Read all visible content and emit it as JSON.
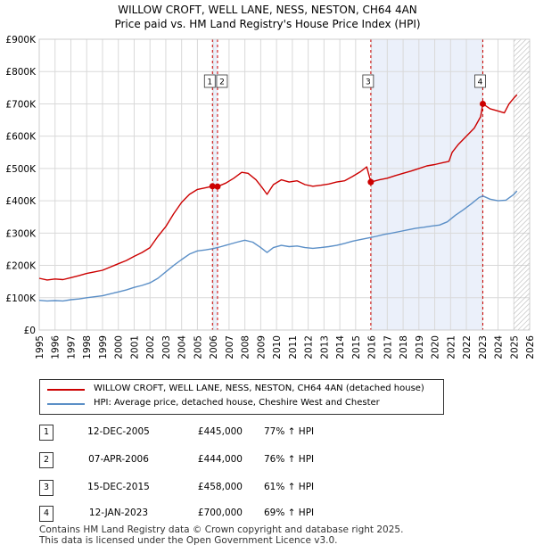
{
  "title_line1": "WILLOW CROFT, WELL LANE, NESS, NESTON, CH64 4AN",
  "title_line2": "Price paid vs. HM Land Registry's House Price Index (HPI)",
  "chart_data": {
    "type": "line",
    "title": "WILLOW CROFT, WELL LANE, NESS, NESTON, CH64 4AN — Price paid vs. HM Land Registry's House Price Index (HPI)",
    "xlabel": "",
    "ylabel": "",
    "xlim": [
      1995,
      2026
    ],
    "ylim": [
      0,
      900000
    ],
    "x_ticks": [
      "1995",
      "1996",
      "1997",
      "1998",
      "1999",
      "2000",
      "2001",
      "2002",
      "2003",
      "2004",
      "2005",
      "2006",
      "2007",
      "2008",
      "2009",
      "2010",
      "2011",
      "2012",
      "2013",
      "2014",
      "2015",
      "2016",
      "2017",
      "2018",
      "2019",
      "2020",
      "2021",
      "2022",
      "2023",
      "2024",
      "2025",
      "2026"
    ],
    "y_ticks": [
      {
        "value": 0,
        "label": "£0"
      },
      {
        "value": 100000,
        "label": "£100K"
      },
      {
        "value": 200000,
        "label": "£200K"
      },
      {
        "value": 300000,
        "label": "£300K"
      },
      {
        "value": 400000,
        "label": "£400K"
      },
      {
        "value": 500000,
        "label": "£500K"
      },
      {
        "value": 600000,
        "label": "£600K"
      },
      {
        "value": 700000,
        "label": "£700K"
      },
      {
        "value": 800000,
        "label": "£800K"
      },
      {
        "value": 900000,
        "label": "£900K"
      }
    ],
    "grid": true,
    "series": [
      {
        "name": "WILLOW CROFT, WELL LANE, NESS, NESTON, CH64 4AN (detached house)",
        "color": "#cc0000",
        "points": [
          [
            1995.0,
            160000
          ],
          [
            1995.5,
            155000
          ],
          [
            1996.0,
            158000
          ],
          [
            1996.5,
            156000
          ],
          [
            1997.0,
            162000
          ],
          [
            1997.5,
            168000
          ],
          [
            1998.0,
            175000
          ],
          [
            1998.5,
            180000
          ],
          [
            1999.0,
            185000
          ],
          [
            1999.5,
            195000
          ],
          [
            2000.0,
            205000
          ],
          [
            2000.5,
            215000
          ],
          [
            2001.0,
            228000
          ],
          [
            2001.5,
            240000
          ],
          [
            2002.0,
            255000
          ],
          [
            2002.5,
            290000
          ],
          [
            2003.0,
            320000
          ],
          [
            2003.5,
            360000
          ],
          [
            2004.0,
            395000
          ],
          [
            2004.5,
            420000
          ],
          [
            2005.0,
            435000
          ],
          [
            2005.5,
            440000
          ],
          [
            2005.95,
            445000
          ],
          [
            2006.27,
            444000
          ],
          [
            2006.8,
            455000
          ],
          [
            2007.3,
            470000
          ],
          [
            2007.8,
            488000
          ],
          [
            2008.2,
            485000
          ],
          [
            2008.7,
            465000
          ],
          [
            2009.1,
            440000
          ],
          [
            2009.4,
            420000
          ],
          [
            2009.8,
            450000
          ],
          [
            2010.3,
            465000
          ],
          [
            2010.8,
            458000
          ],
          [
            2011.3,
            462000
          ],
          [
            2011.8,
            450000
          ],
          [
            2012.3,
            445000
          ],
          [
            2012.8,
            448000
          ],
          [
            2013.3,
            452000
          ],
          [
            2013.8,
            458000
          ],
          [
            2014.3,
            462000
          ],
          [
            2014.8,
            475000
          ],
          [
            2015.3,
            490000
          ],
          [
            2015.7,
            505000
          ],
          [
            2015.96,
            458000
          ],
          [
            2016.5,
            465000
          ],
          [
            2017.0,
            470000
          ],
          [
            2017.5,
            478000
          ],
          [
            2018.0,
            485000
          ],
          [
            2018.5,
            492000
          ],
          [
            2019.0,
            500000
          ],
          [
            2019.5,
            508000
          ],
          [
            2020.0,
            512000
          ],
          [
            2020.5,
            518000
          ],
          [
            2020.9,
            522000
          ],
          [
            2021.1,
            550000
          ],
          [
            2021.5,
            575000
          ],
          [
            2022.0,
            600000
          ],
          [
            2022.5,
            625000
          ],
          [
            2022.9,
            660000
          ],
          [
            2023.04,
            700000
          ],
          [
            2023.5,
            685000
          ],
          [
            2024.0,
            678000
          ],
          [
            2024.4,
            672000
          ],
          [
            2024.7,
            700000
          ],
          [
            2025.0,
            718000
          ],
          [
            2025.2,
            728000
          ]
        ]
      },
      {
        "name": "HPI: Average price, detached house, Cheshire West and Chester",
        "color": "#5b8fc7",
        "points": [
          [
            1995.0,
            92000
          ],
          [
            1995.5,
            90000
          ],
          [
            1996.0,
            91000
          ],
          [
            1996.5,
            90000
          ],
          [
            1997.0,
            94000
          ],
          [
            1997.5,
            96000
          ],
          [
            1998.0,
            100000
          ],
          [
            1998.5,
            103000
          ],
          [
            1999.0,
            106000
          ],
          [
            1999.5,
            112000
          ],
          [
            2000.0,
            118000
          ],
          [
            2000.5,
            124000
          ],
          [
            2001.0,
            132000
          ],
          [
            2001.5,
            138000
          ],
          [
            2002.0,
            146000
          ],
          [
            2002.5,
            160000
          ],
          [
            2003.0,
            180000
          ],
          [
            2003.5,
            200000
          ],
          [
            2004.0,
            218000
          ],
          [
            2004.5,
            235000
          ],
          [
            2005.0,
            245000
          ],
          [
            2005.5,
            248000
          ],
          [
            2006.0,
            252000
          ],
          [
            2006.5,
            258000
          ],
          [
            2007.0,
            265000
          ],
          [
            2007.5,
            272000
          ],
          [
            2008.0,
            278000
          ],
          [
            2008.5,
            272000
          ],
          [
            2009.0,
            255000
          ],
          [
            2009.4,
            240000
          ],
          [
            2009.8,
            255000
          ],
          [
            2010.3,
            262000
          ],
          [
            2010.8,
            258000
          ],
          [
            2011.3,
            260000
          ],
          [
            2011.8,
            255000
          ],
          [
            2012.3,
            253000
          ],
          [
            2012.8,
            255000
          ],
          [
            2013.3,
            258000
          ],
          [
            2013.8,
            262000
          ],
          [
            2014.3,
            268000
          ],
          [
            2014.8,
            275000
          ],
          [
            2015.3,
            280000
          ],
          [
            2015.8,
            285000
          ],
          [
            2016.3,
            290000
          ],
          [
            2016.8,
            296000
          ],
          [
            2017.3,
            300000
          ],
          [
            2017.8,
            305000
          ],
          [
            2018.3,
            310000
          ],
          [
            2018.8,
            315000
          ],
          [
            2019.3,
            318000
          ],
          [
            2019.8,
            322000
          ],
          [
            2020.3,
            325000
          ],
          [
            2020.8,
            335000
          ],
          [
            2021.3,
            355000
          ],
          [
            2021.8,
            372000
          ],
          [
            2022.3,
            390000
          ],
          [
            2022.8,
            410000
          ],
          [
            2023.04,
            415000
          ],
          [
            2023.5,
            405000
          ],
          [
            2024.0,
            400000
          ],
          [
            2024.5,
            402000
          ],
          [
            2025.0,
            420000
          ],
          [
            2025.2,
            430000
          ]
        ]
      }
    ],
    "sales": [
      {
        "num": "1",
        "date": "12-DEC-2005",
        "x": 2005.95,
        "price": 445000
      },
      {
        "num": "2",
        "date": "07-APR-2006",
        "x": 2006.27,
        "price": 444000
      },
      {
        "num": "3",
        "date": "15-DEC-2015",
        "x": 2015.96,
        "price": 458000
      },
      {
        "num": "4",
        "date": "12-JAN-2023",
        "x": 2023.04,
        "price": 700000
      }
    ],
    "shaded_ranges": [
      [
        2005.95,
        2006.27
      ],
      [
        2015.96,
        2023.04
      ]
    ],
    "hatched_from": 2025.0
  },
  "legend": {
    "property": "WILLOW CROFT, WELL LANE, NESS, NESTON, CH64 4AN (detached house)",
    "hpi": "HPI: Average price, detached house, Cheshire West and Chester"
  },
  "sales_table": [
    {
      "num": "1",
      "date": "12-DEC-2005",
      "price": "£445,000",
      "hpi": "77% ↑ HPI"
    },
    {
      "num": "2",
      "date": "07-APR-2006",
      "price": "£444,000",
      "hpi": "76% ↑ HPI"
    },
    {
      "num": "3",
      "date": "15-DEC-2015",
      "price": "£458,000",
      "hpi": "61% ↑ HPI"
    },
    {
      "num": "4",
      "date": "12-JAN-2023",
      "price": "£700,000",
      "hpi": "69% ↑ HPI"
    }
  ],
  "footer": {
    "line1": "Contains HM Land Registry data © Crown copyright and database right 2025.",
    "line2": "This data is licensed under the Open Government Licence v3.0."
  }
}
